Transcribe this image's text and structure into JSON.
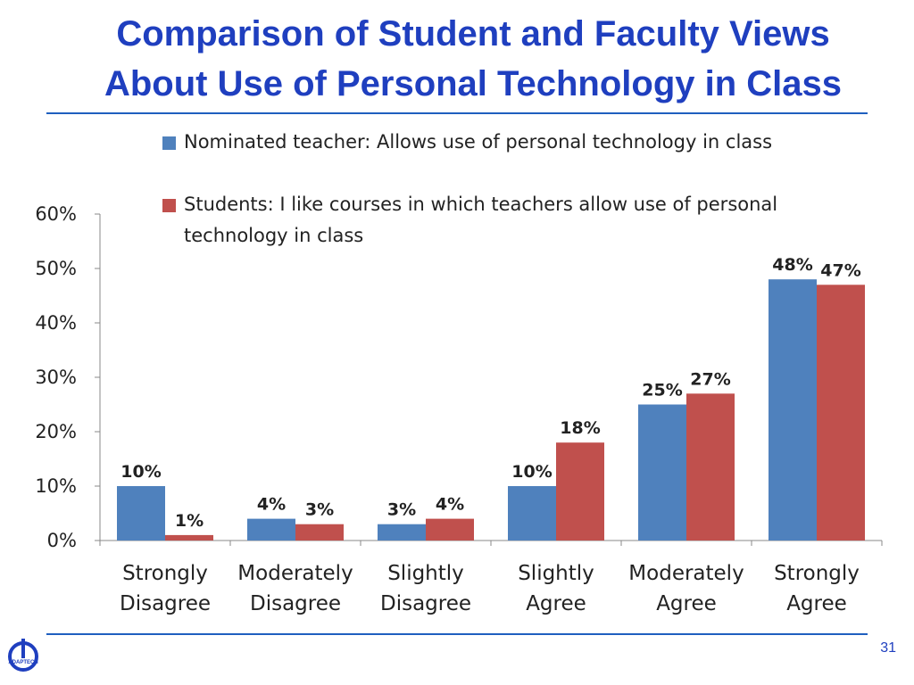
{
  "slide": {
    "title_line1": "Comparison of Student and Faculty Views",
    "title_line2": "About Use of Personal Technology in Class",
    "page_number": "31",
    "logo_text": "ADAPTECH"
  },
  "colors": {
    "title": "#1f3fbf",
    "rule": "#1f5fbf",
    "teacher": "#4f81bd",
    "students": "#c0504d"
  },
  "chart_data": {
    "type": "bar",
    "title": "",
    "xlabel": "",
    "ylabel": "",
    "ylim": [
      0,
      60
    ],
    "yticks": [
      0,
      10,
      20,
      30,
      40,
      50,
      60
    ],
    "ytick_labels": [
      "0%",
      "10%",
      "20%",
      "30%",
      "40%",
      "50%",
      "60%"
    ],
    "grid": false,
    "legend_position": "top",
    "categories": [
      [
        "Strongly",
        "Disagree"
      ],
      [
        "Moderately",
        "Disagree"
      ],
      [
        "Slightly",
        "Disagree"
      ],
      [
        "Slightly",
        "Agree"
      ],
      [
        "Moderately",
        "Agree"
      ],
      [
        "Strongly",
        "Agree"
      ]
    ],
    "series": [
      {
        "name": "Nominated teacher: Allows use of personal technology in class",
        "color": "#4f81bd",
        "values": [
          10,
          4,
          3,
          10,
          25,
          48
        ],
        "labels": [
          "10%",
          "4%",
          "3%",
          "10%",
          "25%",
          "48%"
        ]
      },
      {
        "name": "Students: I like courses in which teachers allow use of personal technology in class",
        "color": "#c0504d",
        "values": [
          1,
          3,
          4,
          18,
          27,
          47
        ],
        "labels": [
          "1%",
          "3%",
          "4%",
          "18%",
          "27%",
          "47%"
        ]
      }
    ]
  }
}
